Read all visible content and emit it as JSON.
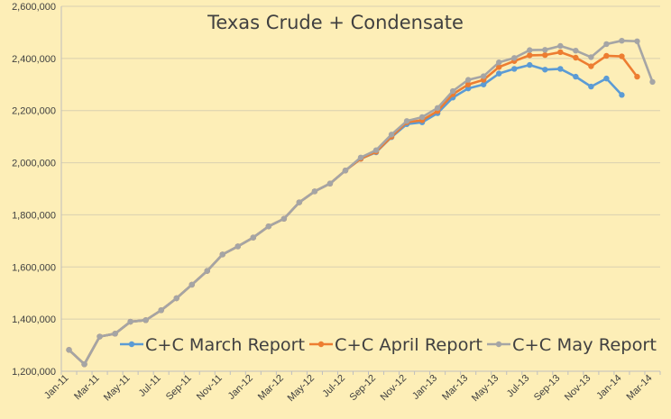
{
  "chart_data": {
    "type": "line",
    "title": "Texas Crude + Condensate",
    "xlabel": "",
    "ylabel": "",
    "ylim": [
      1200000,
      2600000
    ],
    "y_ticks": [
      1200000,
      1400000,
      1600000,
      1800000,
      2000000,
      2200000,
      2400000,
      2600000
    ],
    "y_tick_labels": [
      "1,200,000",
      "1,400,000",
      "1,600,000",
      "1,800,000",
      "2,000,000",
      "2,200,000",
      "2,400,000",
      "2,600,000"
    ],
    "x_tick_labels": [
      "Jan-11",
      "Mar-11",
      "May-11",
      "Jul-11",
      "Sep-11",
      "Nov-11",
      "Jan-12",
      "Mar-12",
      "May-12",
      "Jul-12",
      "Sep-12",
      "Nov-12",
      "Jan-13",
      "Mar-13",
      "May-13",
      "Jul-13",
      "Sep-13",
      "Nov-13",
      "Jan-14",
      "Mar-14"
    ],
    "grid": "horizontal",
    "legend_position": "bottom-right",
    "series": [
      {
        "name": "C+C March Report",
        "color": "#5b9bd5",
        "start": "Jan-11",
        "values": [
          1282000,
          1227000,
          1333000,
          1344000,
          1390000,
          1396000,
          1434000,
          1480000,
          1532000,
          1585000,
          1648000,
          1679000,
          1713000,
          1756000,
          1785000,
          1848000,
          1890000,
          1920000,
          1970000,
          2015000,
          2040000,
          2098000,
          2148000,
          2155000,
          2190000,
          2250000,
          2285000,
          2300000,
          2342000,
          2360000,
          2375000,
          2357000,
          2360000,
          2330000,
          2292000,
          2323000,
          2260000
        ]
      },
      {
        "name": "C+C April Report",
        "color": "#ed7d31",
        "start": "Jan-11",
        "values": [
          1282000,
          1227000,
          1333000,
          1344000,
          1390000,
          1396000,
          1434000,
          1480000,
          1532000,
          1585000,
          1648000,
          1679000,
          1713000,
          1756000,
          1785000,
          1848000,
          1890000,
          1920000,
          1970000,
          2015000,
          2042000,
          2100000,
          2155000,
          2163000,
          2198000,
          2263000,
          2300000,
          2318000,
          2367000,
          2390000,
          2412000,
          2413000,
          2424000,
          2403000,
          2370000,
          2410000,
          2408000,
          2330000
        ]
      },
      {
        "name": "C+C May Report",
        "color": "#a5a5a5",
        "start": "Jan-11",
        "values": [
          1282000,
          1227000,
          1333000,
          1344000,
          1390000,
          1396000,
          1434000,
          1480000,
          1532000,
          1585000,
          1648000,
          1679000,
          1713000,
          1756000,
          1785000,
          1848000,
          1890000,
          1920000,
          1970000,
          2020000,
          2048000,
          2108000,
          2160000,
          2175000,
          2210000,
          2275000,
          2318000,
          2332000,
          2385000,
          2402000,
          2432000,
          2433000,
          2448000,
          2430000,
          2405000,
          2455000,
          2468000,
          2466000,
          2310000
        ]
      }
    ]
  }
}
